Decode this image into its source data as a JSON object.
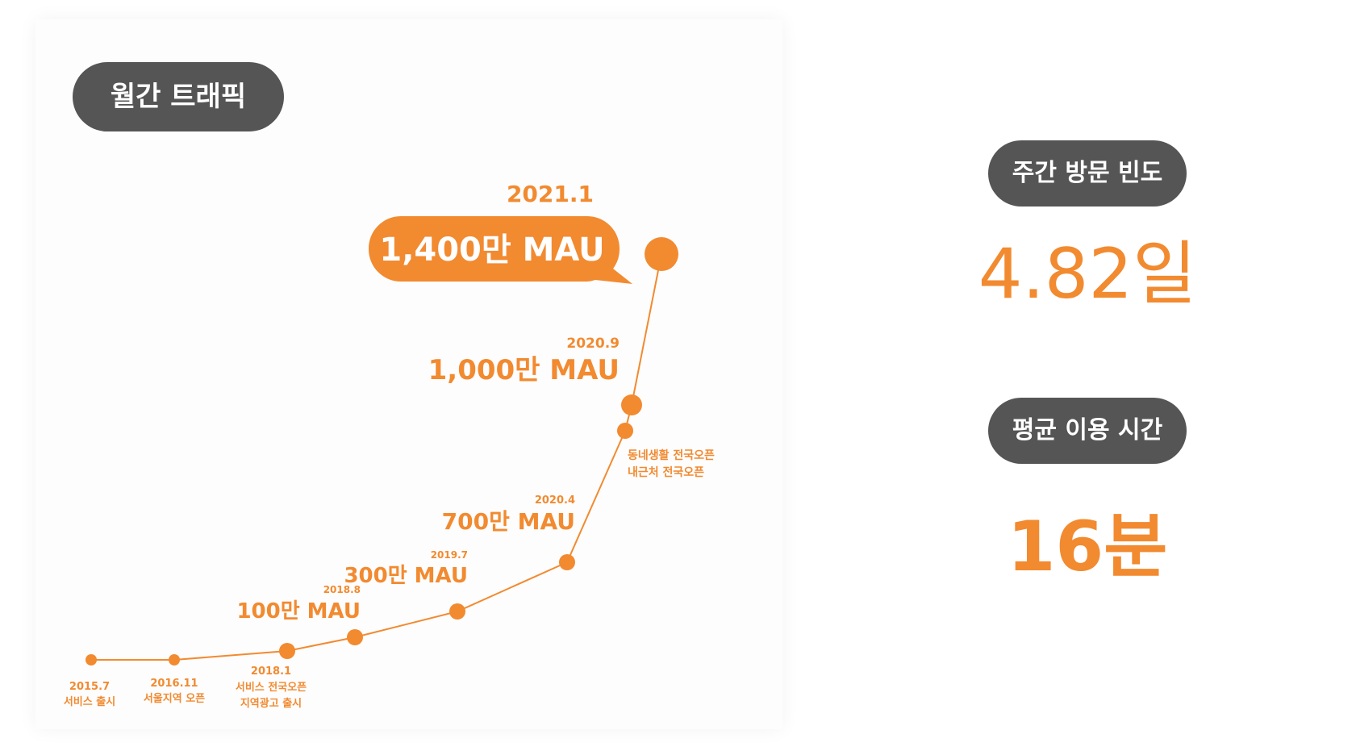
{
  "panels": {
    "traffic_title": "월간 트래픽",
    "weekly_title": "주간 방문 빈도",
    "weekly_value": "4.82일",
    "avg_title": "평균 이용 시간",
    "avg_value": "16분"
  },
  "colors": {
    "accent": "#f28a30",
    "pill": "#555555"
  },
  "chart_data": {
    "type": "line",
    "title": "월간 트래픽",
    "points": [
      {
        "date": "2015.7",
        "note": [
          "서비스 출시"
        ]
      },
      {
        "date": "2016.11",
        "note": [
          "서울지역 오픈"
        ]
      },
      {
        "date": "2018.1",
        "note": [
          "서비스 전국오픈",
          "지역광고 출시"
        ]
      },
      {
        "date": "2018.8",
        "mau": "100만 MAU"
      },
      {
        "date": "2019.7",
        "mau": "300만 MAU"
      },
      {
        "date": "2020.4",
        "mau": "700만 MAU"
      },
      {
        "date": "",
        "note": [
          "동네생활 전국오픈",
          "내근처 전국오픈"
        ]
      },
      {
        "date": "2020.9",
        "mau": "1,000만 MAU"
      },
      {
        "date": "2021.1",
        "mau": "1,400만 MAU",
        "highlight": true
      }
    ],
    "values_mau_10k": [
      null,
      null,
      null,
      100,
      300,
      700,
      null,
      1000,
      1400
    ]
  }
}
